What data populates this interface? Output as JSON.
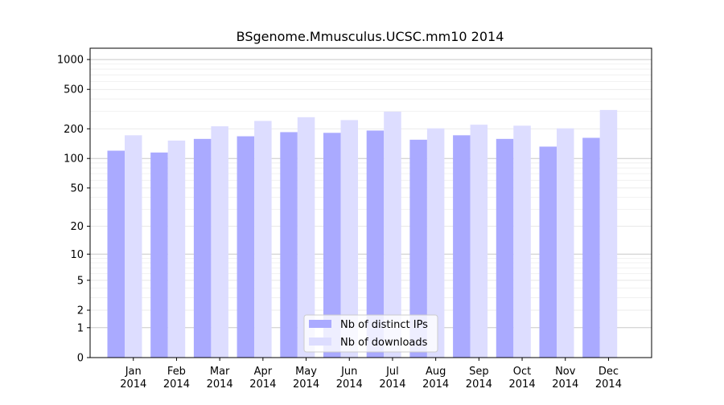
{
  "chart_data": {
    "type": "bar",
    "title": "BSgenome.Mmusculus.UCSC.mm10 2014",
    "xlabel": "",
    "ylabel": "",
    "yscale": "log1p",
    "ylim": [
      0,
      1300
    ],
    "yticks": [
      0,
      1,
      2,
      5,
      10,
      20,
      50,
      100,
      200,
      500,
      1000
    ],
    "ytick_labels": [
      "0",
      "1",
      "2",
      "5",
      "10",
      "20",
      "50",
      "100",
      "200",
      "500",
      "1000"
    ],
    "grid": true,
    "legend_position": "bottom-center",
    "categories": [
      {
        "month": "Jan",
        "year": "2014"
      },
      {
        "month": "Feb",
        "year": "2014"
      },
      {
        "month": "Mar",
        "year": "2014"
      },
      {
        "month": "Apr",
        "year": "2014"
      },
      {
        "month": "May",
        "year": "2014"
      },
      {
        "month": "Jun",
        "year": "2014"
      },
      {
        "month": "Jul",
        "year": "2014"
      },
      {
        "month": "Aug",
        "year": "2014"
      },
      {
        "month": "Sep",
        "year": "2014"
      },
      {
        "month": "Oct",
        "year": "2014"
      },
      {
        "month": "Nov",
        "year": "2014"
      },
      {
        "month": "Dec",
        "year": "2014"
      }
    ],
    "series": [
      {
        "name": "Nb of distinct IPs",
        "color": "#aaaaff",
        "values": [
          120,
          115,
          158,
          168,
          185,
          182,
          192,
          155,
          172,
          158,
          132,
          162
        ]
      },
      {
        "name": "Nb of downloads",
        "color": "#ddddff",
        "values": [
          172,
          152,
          212,
          240,
          262,
          245,
          298,
          202,
          220,
          215,
          202,
          310
        ]
      }
    ]
  }
}
